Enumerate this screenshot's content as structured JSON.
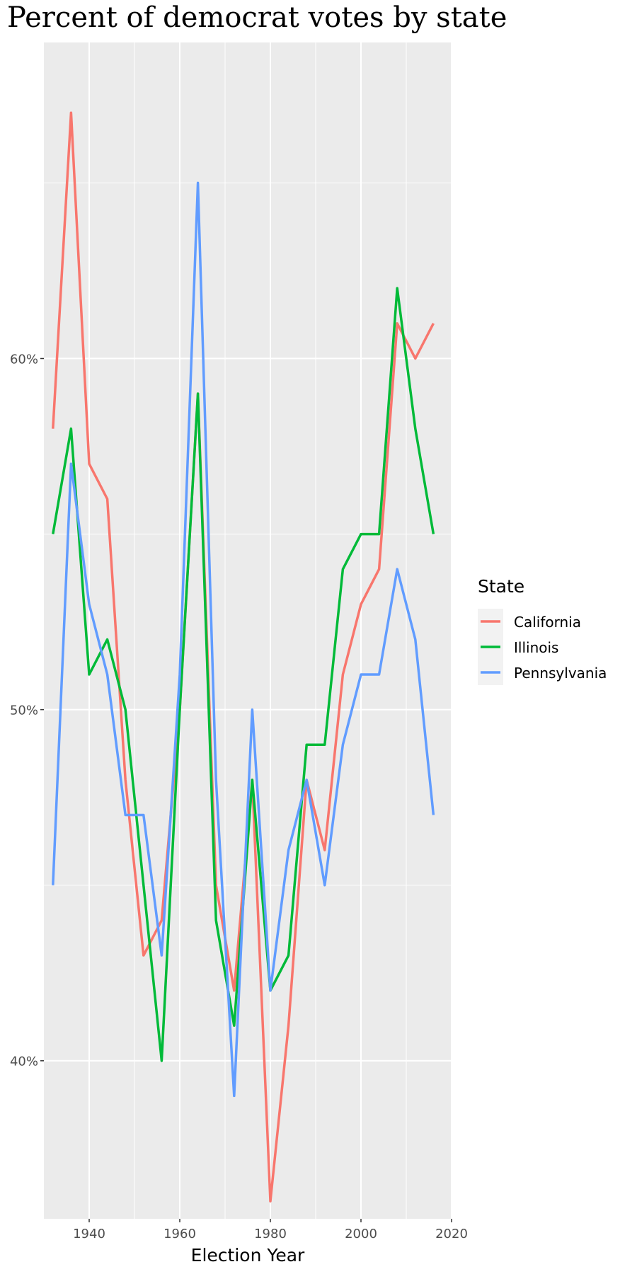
{
  "chart_data": {
    "type": "line",
    "title": "Percent of democrat votes by state",
    "xlabel": "Election Year",
    "ylabel": "",
    "xlim": [
      1930,
      2020
    ],
    "ylim": [
      0.355,
      0.69
    ],
    "x_ticks": [
      1940,
      1960,
      1980,
      2000,
      2020
    ],
    "x_minor_ticks": [
      1950,
      1970,
      1990,
      2010
    ],
    "y_ticks": [
      0.4,
      0.5,
      0.6
    ],
    "y_tick_labels": [
      "40%",
      "50%",
      "60%"
    ],
    "y_minor_ticks": [
      0.45,
      0.55,
      0.65
    ],
    "grid": true,
    "legend": {
      "title": "State",
      "position": "right"
    },
    "x": [
      1932,
      1936,
      1940,
      1944,
      1948,
      1952,
      1956,
      1960,
      1964,
      1968,
      1972,
      1976,
      1980,
      1984,
      1988,
      1992,
      1996,
      2000,
      2004,
      2008,
      2012,
      2016
    ],
    "series": [
      {
        "name": "California",
        "color": "#F8766D",
        "values": [
          0.58,
          0.67,
          0.57,
          0.56,
          0.48,
          0.43,
          0.44,
          0.5,
          0.59,
          0.45,
          0.42,
          0.48,
          0.36,
          0.41,
          0.48,
          0.46,
          0.51,
          0.53,
          0.54,
          0.61,
          0.6,
          0.61
        ]
      },
      {
        "name": "Illinois",
        "color": "#00BA38",
        "values": [
          0.55,
          0.58,
          0.51,
          0.52,
          0.5,
          0.45,
          0.4,
          0.5,
          0.59,
          0.44,
          0.41,
          0.48,
          0.42,
          0.43,
          0.49,
          0.49,
          0.54,
          0.55,
          0.55,
          0.62,
          0.58,
          0.55
        ]
      },
      {
        "name": "Pennsylvania",
        "color": "#619CFF",
        "values": [
          0.45,
          0.57,
          0.53,
          0.51,
          0.47,
          0.47,
          0.43,
          0.51,
          0.65,
          0.48,
          0.39,
          0.5,
          0.42,
          0.46,
          0.48,
          0.45,
          0.49,
          0.51,
          0.51,
          0.54,
          0.52,
          0.47
        ]
      }
    ]
  }
}
